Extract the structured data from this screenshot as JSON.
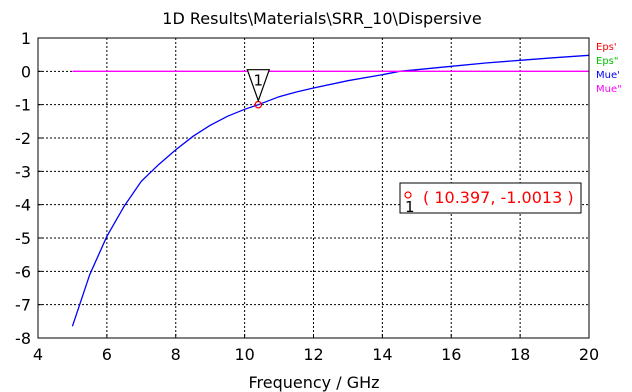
{
  "chart_data": {
    "type": "line",
    "title": "1D Results\\Materials\\SRR_10\\Dispersive",
    "xlabel": "Frequency / GHz",
    "ylabel": "",
    "xlim": [
      4,
      20
    ],
    "ylim": [
      -8,
      1
    ],
    "xticks": [
      "4",
      "6",
      "8",
      "10",
      "12",
      "14",
      "16",
      "18",
      "20"
    ],
    "yticks": [
      "1",
      "0",
      "-1",
      "-2",
      "-3",
      "-4",
      "-5",
      "-6",
      "-7",
      "-8"
    ],
    "grid": true,
    "legend_position": "right",
    "series": [
      {
        "name": "Eps'",
        "color": "#ff0000",
        "x": [],
        "y": []
      },
      {
        "name": "Eps\"",
        "color": "#00c000",
        "x": [],
        "y": []
      },
      {
        "name": "Mue'",
        "color": "#0000ff",
        "x": [
          5,
          5.5,
          6,
          6.5,
          7,
          7.5,
          8,
          8.5,
          9,
          9.5,
          10,
          10.397,
          11,
          11.5,
          12,
          13,
          14,
          14.5,
          15,
          16,
          17,
          18,
          19,
          20
        ],
        "y": [
          -7.65,
          -6.1,
          -4.95,
          -4.05,
          -3.3,
          -2.8,
          -2.35,
          -1.95,
          -1.62,
          -1.35,
          -1.14,
          -1.0013,
          -0.76,
          -0.62,
          -0.5,
          -0.28,
          -0.1,
          0,
          0.05,
          0.15,
          0.25,
          0.33,
          0.41,
          0.48
        ]
      },
      {
        "name": "Mue\"",
        "color": "#ff00ff",
        "x": [
          5,
          20
        ],
        "y": [
          0,
          0
        ]
      }
    ],
    "marker": {
      "label": "1",
      "x": 10.397,
      "y": -1.0013,
      "readout": "( 10.397, -1.0013 )"
    }
  }
}
